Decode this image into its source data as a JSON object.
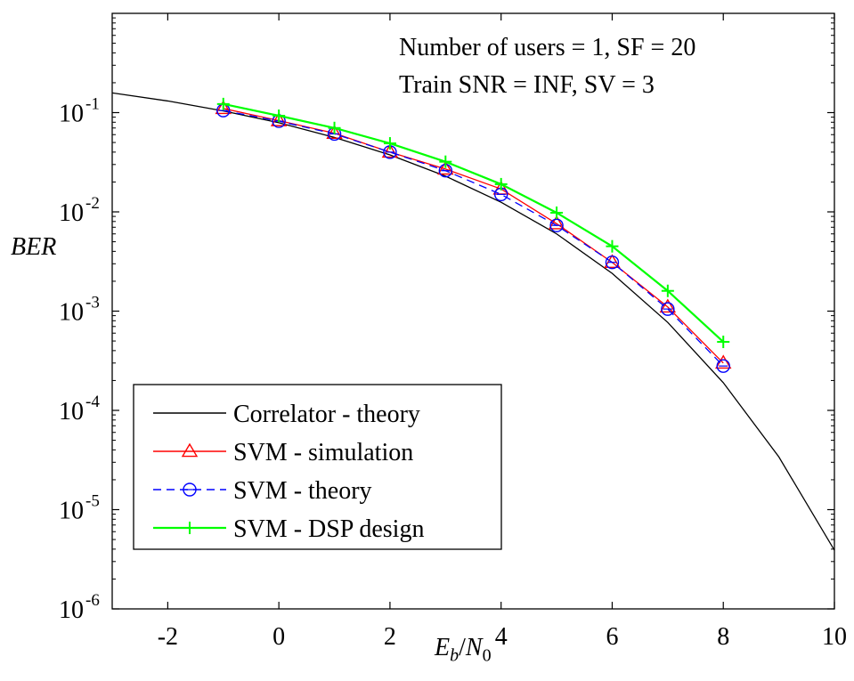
{
  "chart_data": {
    "type": "line",
    "y_scale": "log",
    "xlim": [
      -3,
      10
    ],
    "ylim": [
      1e-06,
      1
    ],
    "x_ticks": [
      -2,
      0,
      2,
      4,
      6,
      8,
      10
    ],
    "x_tick_labels": [
      "-2",
      "0",
      "2",
      "4",
      "6",
      "8",
      "10"
    ],
    "y_ticks": [
      1e-06,
      1e-05,
      0.0001,
      0.001,
      0.01,
      0.1
    ],
    "y_tick_labels": [
      {
        "base": "10",
        "exp": "-6"
      },
      {
        "base": "10",
        "exp": "-5"
      },
      {
        "base": "10",
        "exp": "-4"
      },
      {
        "base": "10",
        "exp": "-3"
      },
      {
        "base": "10",
        "exp": "-2"
      },
      {
        "base": "10",
        "exp": "-1"
      }
    ],
    "ylabel": "BER",
    "xlabel": {
      "E": "E",
      "b": "b",
      "slash": "/",
      "N": "N",
      "zero": "0"
    },
    "annotations": [
      "Number of users = 1, SF = 20",
      "Train SNR = INF, SV = 3"
    ],
    "grid": false,
    "legend_position": "bottom-left",
    "series": [
      {
        "name": "Correlator - theory",
        "color": "#000000",
        "line": "solid",
        "marker": "none",
        "x": [
          -3,
          -2,
          -1,
          0,
          1,
          2,
          3,
          4,
          5,
          6,
          7,
          8,
          9,
          10
        ],
        "y": [
          0.158,
          0.131,
          0.104,
          0.079,
          0.0563,
          0.0375,
          0.0229,
          0.0125,
          0.006,
          0.0024,
          0.00077,
          0.00019,
          3.4e-05,
          3.9e-06
        ]
      },
      {
        "name": "SVM - simulation",
        "color": "#ff0000",
        "line": "solid",
        "marker": "triangle",
        "x": [
          -1,
          0,
          1,
          2,
          3,
          4,
          5,
          6,
          7,
          8
        ],
        "y": [
          0.11,
          0.083,
          0.062,
          0.04,
          0.027,
          0.017,
          0.0076,
          0.0031,
          0.0011,
          0.0003
        ]
      },
      {
        "name": "SVM - theory",
        "color": "#0000ff",
        "line": "dashed",
        "marker": "circle",
        "x": [
          -1,
          0,
          1,
          2,
          3,
          4,
          5,
          6,
          7,
          8
        ],
        "y": [
          0.105,
          0.082,
          0.061,
          0.04,
          0.026,
          0.015,
          0.0073,
          0.0031,
          0.00105,
          0.00028
        ]
      },
      {
        "name": "SVM - DSP design",
        "color": "#00ff00",
        "line": "solid",
        "marker": "plus",
        "x": [
          -1,
          0,
          1,
          2,
          3,
          4,
          5,
          6,
          7,
          8
        ],
        "y": [
          0.122,
          0.093,
          0.07,
          0.049,
          0.032,
          0.019,
          0.0098,
          0.0045,
          0.0016,
          0.00049
        ]
      }
    ]
  }
}
